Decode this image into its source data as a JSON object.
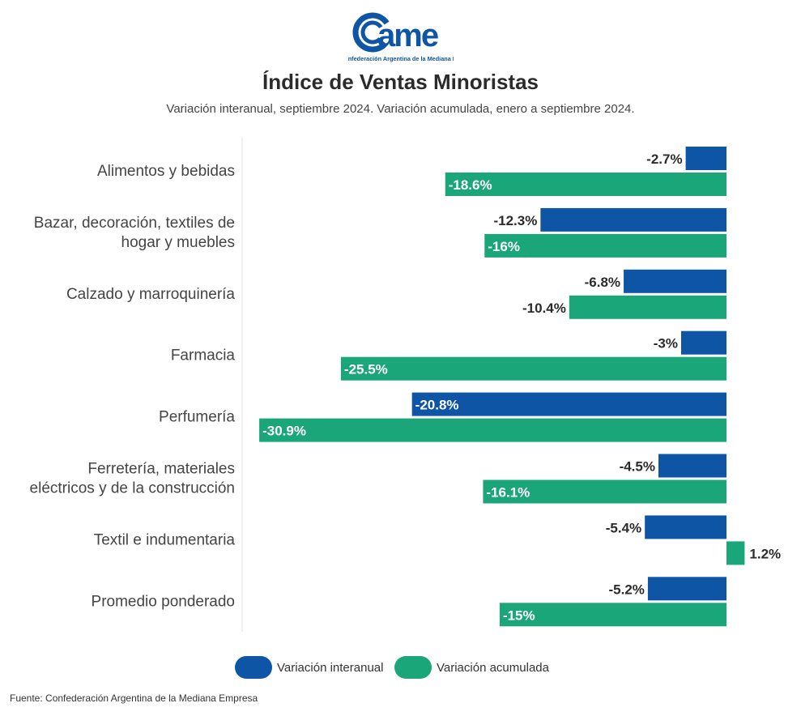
{
  "logo": {
    "text": "ame",
    "tagline": "Confederación Argentina de la Mediana Empresa"
  },
  "colors": {
    "interanual": "#0e56a5",
    "acumulada": "#1ba679"
  },
  "chart_data": {
    "type": "bar",
    "orientation": "horizontal",
    "title": "Índice de Ventas Minoristas",
    "subtitle": "Variación interanual, septiembre 2024. Variación acumulada, enero a septiembre 2024.",
    "categories": [
      [
        "Alimentos y bebidas"
      ],
      [
        "Bazar, decoración, textiles de",
        "hogar y muebles"
      ],
      [
        "Calzado y marroquinería"
      ],
      [
        "Farmacia"
      ],
      [
        "Perfumería"
      ],
      [
        "Ferretería, materiales",
        "eléctricos y de la construcción"
      ],
      [
        "Textil e indumentaria"
      ],
      [
        "Promedio ponderado"
      ]
    ],
    "series": [
      {
        "name": "Variación interanual",
        "values": [
          -2.7,
          -12.3,
          -6.8,
          -3,
          -20.8,
          -4.5,
          -5.4,
          -5.2
        ],
        "labels": [
          "-2.7%",
          "-12.3%",
          "-6.8%",
          "-3%",
          "-20.8%",
          "-4.5%",
          "-5.4%",
          "-5.2%"
        ]
      },
      {
        "name": "Variación acumulada",
        "values": [
          -18.6,
          -16,
          -10.4,
          -25.5,
          -30.9,
          -16.1,
          1.2,
          -15
        ],
        "labels": [
          "-18.6%",
          "-16%",
          "-10.4%",
          "-25.5%",
          "-30.9%",
          "-16.1%",
          "1.2%",
          "-15%"
        ]
      }
    ],
    "legend": "bottom",
    "grid": false
  },
  "source": "Fuente: Confederación Argentina de la Mediana Empresa"
}
